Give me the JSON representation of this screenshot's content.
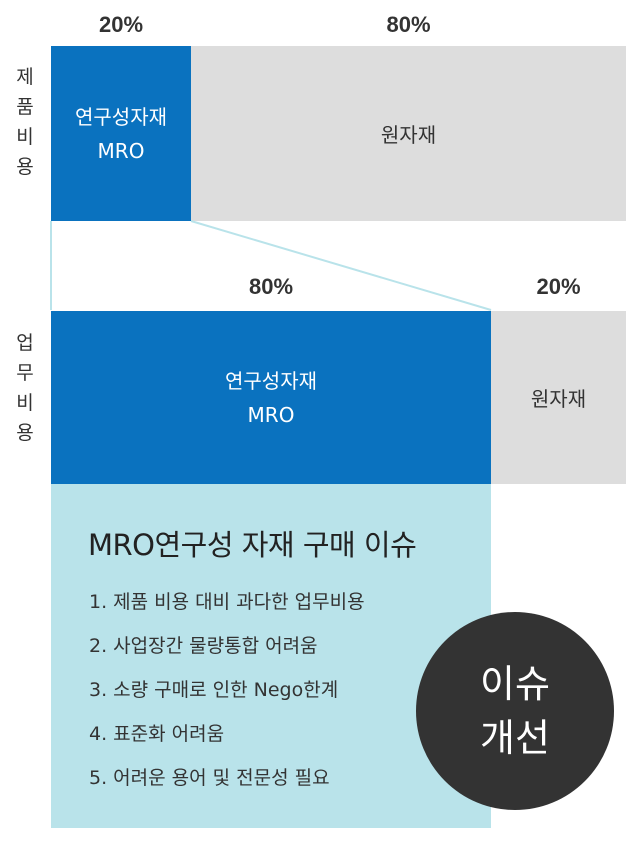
{
  "product_cost": {
    "vertical_label": [
      "제",
      "품",
      "비",
      "용"
    ],
    "left_percent": "20%",
    "right_percent": "80%",
    "blue_box": {
      "line1": "연구성자재",
      "line2": "MRO"
    },
    "gray_box": "원자재"
  },
  "operating_cost": {
    "vertical_label": [
      "업",
      "무",
      "비",
      "용"
    ],
    "left_percent": "80%",
    "right_percent": "20%",
    "blue_box": {
      "line1": "연구성자재",
      "line2": "MRO"
    },
    "gray_box": "원자재"
  },
  "issues": {
    "title": "MRO연구성 자재 구매 이슈",
    "items": [
      "1. 제품 비용 대비 과다한 업무비용",
      "2. 사업장간 물량통합 어려움",
      "3. 소량 구매로 인한 Nego한계",
      "4. 표준화 어려움",
      "5. 어려운 용어 및 전문성 필요"
    ]
  },
  "badge": {
    "line1": "이슈",
    "line2": "개선"
  },
  "colors": {
    "blue": "#0a72bf",
    "gray": "#dddddd",
    "light_blue": "#b9e3ea",
    "dark": "#333333",
    "connector": "#b9e3ea"
  }
}
